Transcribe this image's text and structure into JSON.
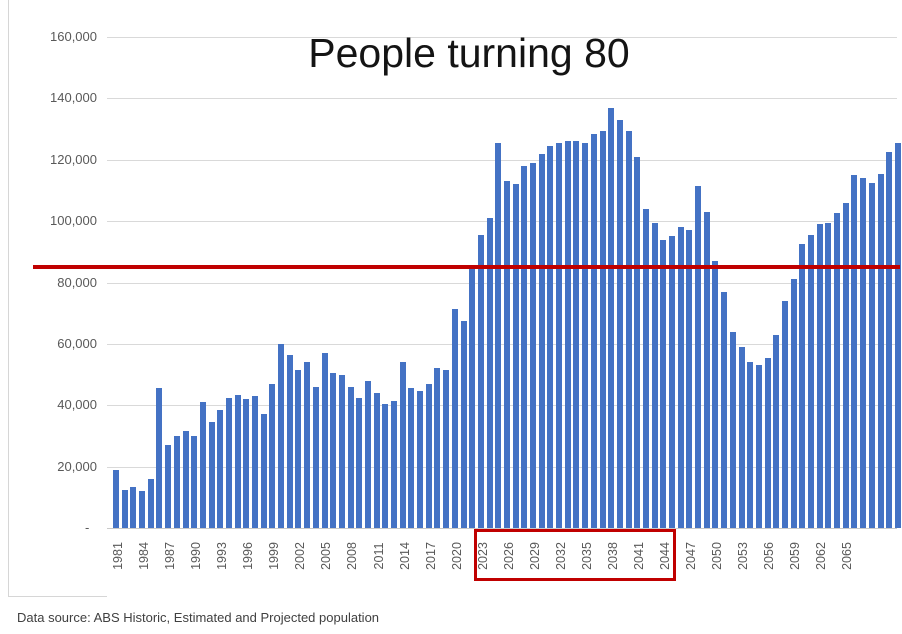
{
  "title": "People turning 80",
  "source_note": "Data source: ABS Historic, Estimated and Projected population",
  "colors": {
    "bar": "#4472C4",
    "reference_line": "#C00000",
    "highlight_box_border": "#C00000",
    "gridline": "#D9D9D9",
    "axis_text": "#595959",
    "title_text": "#141414"
  },
  "y_axis": {
    "tick_labels": [
      "160,000",
      "140,000",
      "120,000",
      "100,000",
      "80,000",
      "60,000",
      "40,000",
      "20,000"
    ],
    "zero_label": "-",
    "max": 160000,
    "tick_step": 20000,
    "grid": "on"
  },
  "x_axis": {
    "labeled_years": [
      1981,
      1984,
      1987,
      1990,
      1993,
      1996,
      1999,
      2002,
      2005,
      2008,
      2011,
      2014,
      2017,
      2020,
      2023,
      2026,
      2029,
      2032,
      2035,
      2038,
      2041,
      2044,
      2047,
      2050,
      2053,
      2056,
      2059,
      2062,
      2065
    ],
    "label_rotation_degrees": -90
  },
  "reference_line": {
    "value": 85000
  },
  "highlight_box": {
    "from_year": 2023,
    "to_year": 2044
  },
  "chart_data": {
    "type": "bar",
    "title": "People turning 80",
    "xlabel": "",
    "ylabel": "",
    "ylim": [
      0,
      160000
    ],
    "legend": "none",
    "categories": [
      1981,
      1982,
      1983,
      1984,
      1985,
      1986,
      1987,
      1988,
      1989,
      1990,
      1991,
      1992,
      1993,
      1994,
      1995,
      1996,
      1997,
      1998,
      1999,
      2000,
      2001,
      2002,
      2003,
      2004,
      2005,
      2006,
      2007,
      2008,
      2009,
      2010,
      2011,
      2012,
      2013,
      2014,
      2015,
      2016,
      2017,
      2018,
      2019,
      2020,
      2021,
      2022,
      2023,
      2024,
      2025,
      2026,
      2027,
      2028,
      2029,
      2030,
      2031,
      2032,
      2033,
      2034,
      2035,
      2036,
      2037,
      2038,
      2039,
      2040,
      2041,
      2042,
      2043,
      2044,
      2045,
      2046,
      2047,
      2048,
      2049,
      2050,
      2051,
      2052,
      2053,
      2054,
      2055,
      2056,
      2057,
      2058,
      2059,
      2060,
      2061,
      2062,
      2063,
      2064,
      2065,
      2066,
      2067,
      2068,
      2069,
      2070,
      2071
    ],
    "values": [
      19000,
      12500,
      13500,
      12000,
      16000,
      45500,
      27000,
      30000,
      31500,
      30000,
      41000,
      34500,
      38500,
      42500,
      43500,
      42000,
      43000,
      37000,
      47000,
      60000,
      56500,
      51500,
      54000,
      46000,
      57000,
      50500,
      50000,
      46000,
      42500,
      48000,
      44000,
      40500,
      41500,
      54000,
      45500,
      44500,
      47000,
      52000,
      51500,
      71500,
      67500,
      84500,
      95500,
      101000,
      125500,
      113000,
      112000,
      118000,
      119000,
      122000,
      124500,
      125500,
      126000,
      126000,
      125500,
      128500,
      129500,
      137000,
      133000,
      129500,
      121000,
      104000,
      99500,
      94000,
      95000,
      98000,
      97000,
      111500,
      103000,
      87000,
      77000,
      64000,
      59000,
      54000,
      53000,
      55500,
      63000,
      74000,
      81000,
      92500,
      95500,
      99000,
      99500,
      102500,
      106000,
      115000,
      114000,
      112500,
      115500,
      122500,
      125500
    ]
  }
}
